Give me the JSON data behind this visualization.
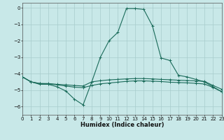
{
  "background_color": "#c8e8e8",
  "grid_color": "#a8cccc",
  "line_color": "#1a6b5a",
  "xlabel": "Humidex (Indice chaleur)",
  "xlim": [
    0,
    23
  ],
  "ylim": [
    -6.5,
    0.3
  ],
  "yticks": [
    0,
    -1,
    -2,
    -3,
    -4,
    -5,
    -6
  ],
  "xticks": [
    0,
    1,
    2,
    3,
    4,
    5,
    6,
    7,
    8,
    9,
    10,
    11,
    12,
    13,
    14,
    15,
    16,
    17,
    18,
    19,
    20,
    21,
    22,
    23
  ],
  "line1_x": [
    0,
    1,
    2,
    3,
    4,
    5,
    6,
    7,
    8,
    9,
    10,
    11,
    12,
    13,
    14,
    15,
    16,
    17,
    18,
    19,
    20,
    21,
    22,
    23
  ],
  "line1_y": [
    -4.2,
    -4.5,
    -4.65,
    -4.65,
    -4.8,
    -5.05,
    -5.55,
    -5.9,
    -4.5,
    -3.0,
    -2.0,
    -1.5,
    -0.05,
    -0.05,
    -0.1,
    -1.1,
    -3.05,
    -3.2,
    -4.1,
    -4.2,
    -4.35,
    -4.5,
    -4.8,
    -5.1
  ],
  "line2_x": [
    0,
    1,
    2,
    3,
    4,
    5,
    6,
    7,
    8,
    9,
    10,
    11,
    12,
    13,
    14,
    15,
    16,
    17,
    18,
    19,
    20,
    21,
    22,
    23
  ],
  "line2_y": [
    -4.2,
    -4.5,
    -4.6,
    -4.6,
    -4.65,
    -4.68,
    -4.72,
    -4.75,
    -4.5,
    -4.43,
    -4.38,
    -4.35,
    -4.32,
    -4.3,
    -4.3,
    -4.32,
    -4.35,
    -4.37,
    -4.4,
    -4.42,
    -4.44,
    -4.47,
    -4.72,
    -4.95
  ],
  "line3_x": [
    0,
    1,
    2,
    3,
    4,
    5,
    6,
    7,
    8,
    9,
    10,
    11,
    12,
    13,
    14,
    15,
    16,
    17,
    18,
    19,
    20,
    21,
    22,
    23
  ],
  "line3_y": [
    -4.2,
    -4.5,
    -4.6,
    -4.62,
    -4.68,
    -4.75,
    -4.82,
    -4.85,
    -4.72,
    -4.62,
    -4.57,
    -4.52,
    -4.47,
    -4.44,
    -4.44,
    -4.46,
    -4.48,
    -4.52,
    -4.54,
    -4.56,
    -4.59,
    -4.63,
    -4.84,
    -5.1
  ],
  "xlabel_fontsize": 6,
  "tick_fontsize": 5,
  "line_width": 0.8,
  "marker_size": 2.5
}
